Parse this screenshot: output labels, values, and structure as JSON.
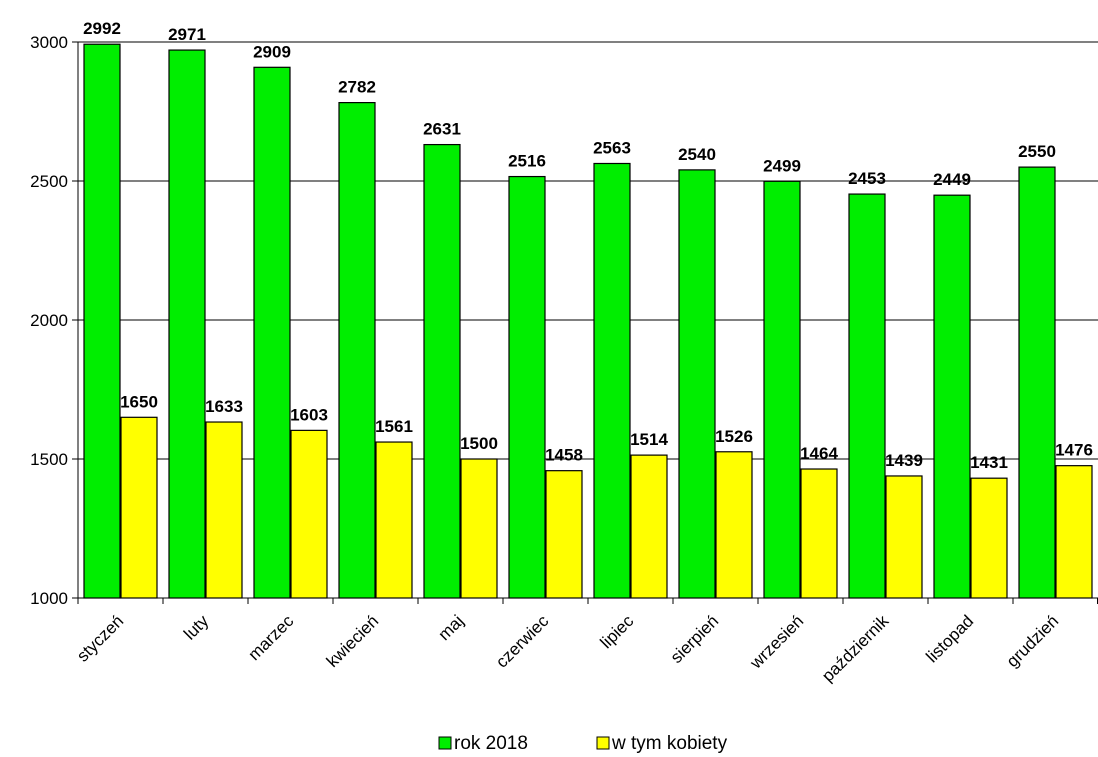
{
  "chart_data": {
    "type": "bar",
    "categories": [
      "styczeń",
      "luty",
      "marzec",
      "kwiecień",
      "maj",
      "czerwiec",
      "lipiec",
      "sierpień",
      "wrzesień",
      "październik",
      "listopad",
      "grudzień"
    ],
    "series": [
      {
        "name": "rok 2018",
        "color": "#00ee00",
        "values": [
          2992,
          2971,
          2909,
          2782,
          2631,
          2516,
          2563,
          2540,
          2499,
          2453,
          2449,
          2550
        ]
      },
      {
        "name": "w tym kobiety",
        "color": "#ffff00",
        "values": [
          1650,
          1633,
          1603,
          1561,
          1500,
          1458,
          1514,
          1526,
          1464,
          1439,
          1431,
          1476
        ]
      }
    ],
    "ylim": [
      1000,
      3000
    ],
    "yticks": [
      1000,
      1500,
      2000,
      2500,
      3000
    ],
    "grid": true,
    "legend_position": "bottom"
  }
}
